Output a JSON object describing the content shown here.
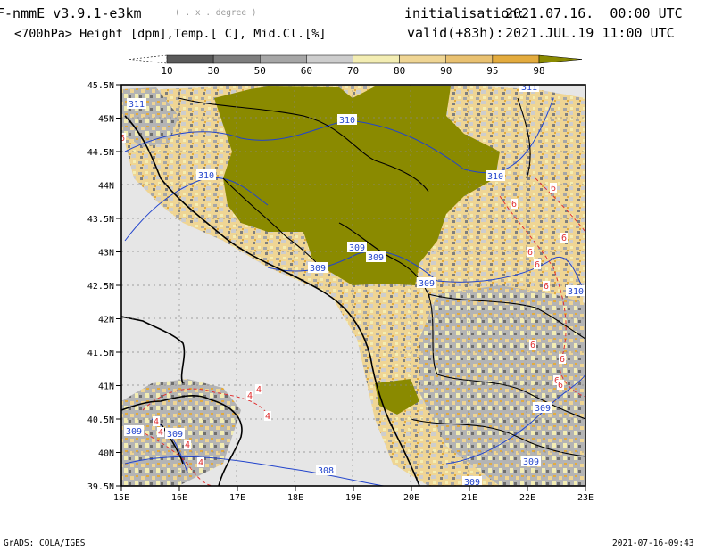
{
  "header": {
    "model": "F-nmmE_v3.9.1-e3km",
    "unit_note": "( . x . degree )",
    "fields": "<700hPa> Height [dpm],Temp.[ C], Mid.Cl.[%]",
    "init_label": "initialisation:",
    "init_value": "2021.07.16.  00:00 UTC",
    "valid_label": "valid(+83h):",
    "valid_value": "2021.JUL.19 11:00 UTC"
  },
  "colorbar": {
    "ticks": [
      "10",
      "30",
      "50",
      "60",
      "70",
      "80",
      "90",
      "95",
      "98"
    ],
    "colors": [
      "#ffffff",
      "#5a5a5a",
      "#7e7e7e",
      "#a6a6a6",
      "#cdcdcd",
      "#f3edb3",
      "#efd594",
      "#e9c171",
      "#e3ab3e",
      "#8a8a00"
    ]
  },
  "map": {
    "lat_labels": [
      "45.5N",
      "45N",
      "44.5N",
      "44N",
      "43.5N",
      "43N",
      "42.5N",
      "42N",
      "41.5N",
      "41N",
      "40.5N",
      "40N",
      "39.5N"
    ],
    "lon_labels": [
      "15E",
      "16E",
      "17E",
      "18E",
      "19E",
      "20E",
      "21E",
      "22E",
      "23E"
    ],
    "contour_labels": [
      "311",
      "310",
      "310",
      "310",
      "309",
      "309",
      "309",
      "309",
      "309",
      "309",
      "310",
      "308",
      "309",
      "309",
      "309",
      "311"
    ],
    "temp_labels": [
      "6",
      "6",
      "6",
      "6",
      "6",
      "6",
      "6",
      "6",
      "6",
      "6",
      "6",
      "4",
      "4",
      "4",
      "4",
      "4",
      "4",
      "4"
    ],
    "colors": {
      "sea": "#e6e6e6",
      "cloud_full": "#8a8a00",
      "coast": "#000000",
      "contour": "#2244cc",
      "temp": "#e03030"
    }
  },
  "footer": {
    "left": "GrADS: COLA/IGES",
    "right": "2021-07-16-09:43"
  }
}
